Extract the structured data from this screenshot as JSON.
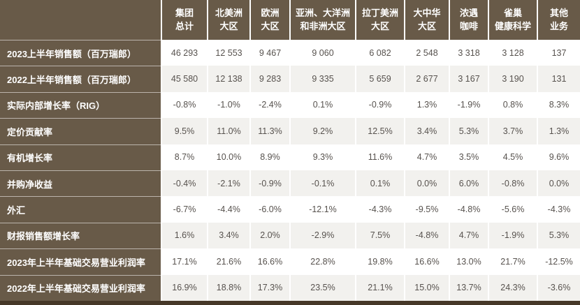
{
  "chart_data": {
    "type": "table",
    "title": "",
    "corner_label": "",
    "columns": [
      {
        "label": "集团总计",
        "display": "集团\n总计"
      },
      {
        "label": "北美洲大区",
        "display": "北美洲\n大区"
      },
      {
        "label": "欧洲大区",
        "display": "欧洲\n大区"
      },
      {
        "label": "亚洲、大洋洲和非洲大区",
        "display": "亚洲、大洋洲\n和非洲大区"
      },
      {
        "label": "拉丁美洲大区",
        "display": "拉丁美洲\n大区"
      },
      {
        "label": "大中华大区",
        "display": "大中华\n大区"
      },
      {
        "label": "浓遇咖啡",
        "display": "浓遇\n咖啡"
      },
      {
        "label": "雀巢健康科学",
        "display": "雀巢\n健康科学"
      },
      {
        "label": "其他业务",
        "display": "其他\n业务"
      }
    ],
    "rows": [
      {
        "label": "2023上半年销售额（百万瑞郎）",
        "values": [
          "46 293",
          "12 553",
          "9 467",
          "9 060",
          "6 082",
          "2 548",
          "3 318",
          "3 128",
          "137"
        ]
      },
      {
        "label": "2022上半年销售额（百万瑞郎）",
        "values": [
          "45 580",
          "12 138",
          "9 283",
          "9 335",
          "5 659",
          "2 677",
          "3 167",
          "3 190",
          "131"
        ]
      },
      {
        "label": "实际内部增长率（RIG）",
        "values": [
          "-0.8%",
          "-1.0%",
          "-2.4%",
          "0.1%",
          "-0.9%",
          "1.3%",
          "-1.9%",
          "0.8%",
          "8.3%"
        ]
      },
      {
        "label": "定价贡献率",
        "values": [
          "9.5%",
          "11.0%",
          "11.3%",
          "9.2%",
          "12.5%",
          "3.4%",
          "5.3%",
          "3.7%",
          "1.3%"
        ]
      },
      {
        "label": "有机增长率",
        "values": [
          "8.7%",
          "10.0%",
          "8.9%",
          "9.3%",
          "11.6%",
          "4.7%",
          "3.5%",
          "4.5%",
          "9.6%"
        ]
      },
      {
        "label": "并购净收益",
        "values": [
          "-0.4%",
          "-2.1%",
          "-0.9%",
          "-0.1%",
          "0.1%",
          "0.0%",
          "6.0%",
          "-0.8%",
          "0.0%"
        ]
      },
      {
        "label": "外汇",
        "values": [
          "-6.7%",
          "-4.4%",
          "-6.0%",
          "-12.1%",
          "-4.3%",
          "-9.5%",
          "-4.8%",
          "-5.6%",
          "-4.3%"
        ]
      },
      {
        "label": "财报销售额增长率",
        "values": [
          "1.6%",
          "3.4%",
          "2.0%",
          "-2.9%",
          "7.5%",
          "-4.8%",
          "4.7%",
          "-1.9%",
          "5.3%"
        ]
      },
      {
        "label": "2023年上半年基础交易营业利润率",
        "values": [
          "17.1%",
          "21.6%",
          "16.6%",
          "22.8%",
          "19.8%",
          "16.6%",
          "13.0%",
          "21.7%",
          "-12.5%"
        ]
      },
      {
        "label": "2022年上半年基础交易营业利润率",
        "values": [
          "16.9%",
          "18.8%",
          "17.3%",
          "23.5%",
          "21.1%",
          "15.0%",
          "13.7%",
          "24.3%",
          "-3.6%"
        ]
      }
    ],
    "colors": {
      "header_brown": "#685a48",
      "bottom_border_brown": "#463828",
      "stripe_gray": "#f2f1ee",
      "data_text": "#57524e",
      "header_text": "#ffffff"
    }
  }
}
